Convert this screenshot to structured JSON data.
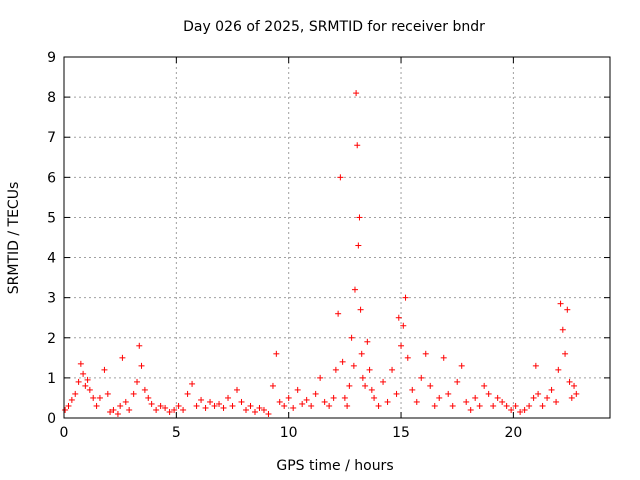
{
  "chart_data": {
    "type": "scatter",
    "title": "Day 026 of 2025, SRMTID for receiver bndr",
    "xlabel": "GPS time / hours",
    "ylabel": "SRMTID / TECUs",
    "xlim": [
      0,
      24.3
    ],
    "ylim": [
      0,
      9
    ],
    "x_ticks": [
      "0",
      "5",
      "10",
      "15",
      "20"
    ],
    "x_tick_values": [
      0,
      5,
      10,
      15,
      20
    ],
    "y_ticks": [
      "0",
      "1",
      "2",
      "3",
      "4",
      "5",
      "6",
      "7",
      "8",
      "9"
    ],
    "y_tick_values": [
      0,
      1,
      2,
      3,
      4,
      5,
      6,
      7,
      8,
      9
    ],
    "grid": true,
    "marker": "+",
    "series": [
      {
        "name": "bndr",
        "color": "#ff0000",
        "x": [
          0.05,
          0.2,
          0.35,
          0.5,
          0.65,
          0.75,
          0.85,
          0.95,
          1.05,
          1.15,
          1.3,
          1.45,
          1.6,
          1.8,
          1.95,
          2.05,
          2.2,
          2.4,
          2.5,
          2.6,
          2.75,
          2.9,
          3.1,
          3.25,
          3.35,
          3.45,
          3.6,
          3.75,
          3.9,
          4.1,
          4.3,
          4.5,
          4.7,
          4.9,
          5.1,
          5.3,
          5.5,
          5.7,
          5.9,
          6.1,
          6.3,
          6.5,
          6.7,
          6.9,
          7.1,
          7.3,
          7.5,
          7.7,
          7.9,
          8.1,
          8.3,
          8.5,
          8.7,
          8.9,
          9.1,
          9.3,
          9.45,
          9.6,
          9.8,
          10.0,
          10.2,
          10.4,
          10.6,
          10.8,
          11.0,
          11.2,
          11.4,
          11.6,
          11.8,
          12.0,
          12.1,
          12.2,
          12.3,
          12.4,
          12.5,
          12.6,
          12.7,
          12.8,
          12.9,
          12.95,
          13.0,
          13.05,
          13.1,
          13.15,
          13.2,
          13.25,
          13.3,
          13.4,
          13.5,
          13.6,
          13.7,
          13.8,
          14.0,
          14.2,
          14.4,
          14.6,
          14.8,
          14.9,
          15.0,
          15.1,
          15.2,
          15.3,
          15.5,
          15.7,
          15.9,
          16.1,
          16.3,
          16.5,
          16.7,
          16.9,
          17.1,
          17.3,
          17.5,
          17.7,
          17.9,
          18.1,
          18.3,
          18.5,
          18.7,
          18.9,
          19.1,
          19.3,
          19.5,
          19.7,
          19.9,
          20.1,
          20.3,
          20.5,
          20.7,
          20.9,
          21.0,
          21.1,
          21.3,
          21.5,
          21.7,
          21.9,
          22.0,
          22.1,
          22.2,
          22.3,
          22.4,
          22.5,
          22.6,
          22.7,
          22.8
        ],
        "y": [
          0.2,
          0.3,
          0.45,
          0.6,
          0.9,
          1.35,
          1.1,
          0.8,
          0.95,
          0.7,
          0.5,
          0.3,
          0.5,
          1.2,
          0.6,
          0.15,
          0.2,
          0.1,
          0.3,
          1.5,
          0.4,
          0.2,
          0.6,
          0.9,
          1.8,
          1.3,
          0.7,
          0.5,
          0.35,
          0.2,
          0.3,
          0.25,
          0.15,
          0.2,
          0.3,
          0.2,
          0.6,
          0.85,
          0.3,
          0.45,
          0.25,
          0.4,
          0.3,
          0.35,
          0.25,
          0.5,
          0.3,
          0.7,
          0.4,
          0.2,
          0.3,
          0.15,
          0.25,
          0.2,
          0.1,
          0.8,
          1.6,
          0.4,
          0.3,
          0.5,
          0.25,
          0.7,
          0.35,
          0.45,
          0.3,
          0.6,
          1.0,
          0.4,
          0.3,
          0.5,
          1.2,
          2.6,
          6.0,
          1.4,
          0.5,
          0.3,
          0.8,
          2.0,
          1.3,
          3.2,
          8.1,
          6.8,
          4.3,
          5.0,
          2.7,
          1.6,
          1.0,
          0.8,
          1.9,
          1.2,
          0.7,
          0.5,
          0.3,
          0.9,
          0.4,
          1.2,
          0.6,
          2.5,
          1.8,
          2.3,
          3.0,
          1.5,
          0.7,
          0.4,
          1.0,
          1.6,
          0.8,
          0.3,
          0.5,
          1.5,
          0.6,
          0.3,
          0.9,
          1.3,
          0.4,
          0.2,
          0.5,
          0.3,
          0.8,
          0.6,
          0.3,
          0.5,
          0.4,
          0.3,
          0.2,
          0.3,
          0.15,
          0.2,
          0.3,
          0.5,
          1.3,
          0.6,
          0.3,
          0.5,
          0.7,
          0.4,
          1.2,
          2.85,
          2.2,
          1.6,
          2.7,
          0.9,
          0.5,
          0.8,
          0.6
        ]
      }
    ]
  }
}
